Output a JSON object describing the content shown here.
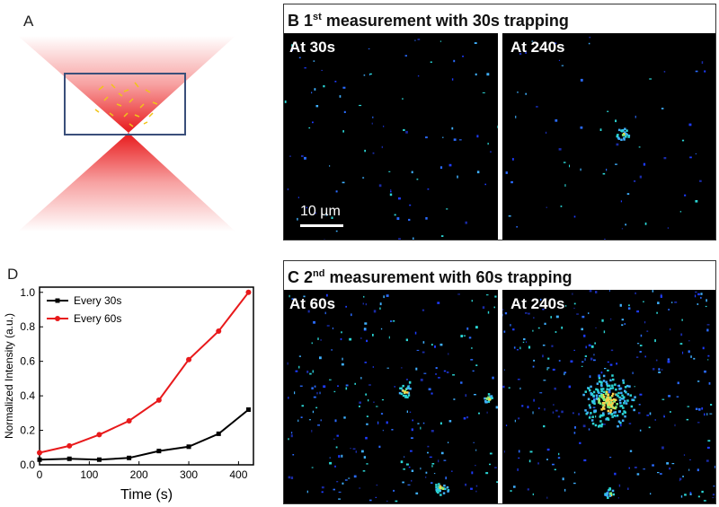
{
  "panel_a": {
    "letter": "A"
  },
  "panel_b": {
    "letter": "B",
    "title_prefix": "1",
    "title_sup": "st",
    "title_suffix": " measurement with 30s trapping",
    "left_label": "At 30s",
    "right_label": "At 240s",
    "scale_bar_label": "10 µm"
  },
  "panel_c": {
    "letter": "C",
    "title_prefix": "2",
    "title_sup": "nd",
    "title_suffix": " measurement with 60s trapping",
    "left_label": "At 60s",
    "right_label": "At 240s"
  },
  "panel_d": {
    "letter": "D"
  },
  "chart_data": {
    "type": "line",
    "xlabel": "Time (s)",
    "ylabel": "Normalized Intensity (a.u.)",
    "xlim": [
      0,
      430
    ],
    "ylim": [
      0,
      1.03
    ],
    "xticks": [
      0,
      100,
      200,
      300,
      400
    ],
    "yticks": [
      0.0,
      0.2,
      0.4,
      0.6,
      0.8,
      1.0
    ],
    "ytick_labels": [
      "0.0",
      "0.2",
      "0.4",
      "0.6",
      "0.8",
      "1.0"
    ],
    "legend_position": "top-left",
    "series": [
      {
        "name": "Every 30s",
        "color": "#000000",
        "marker": "square",
        "x": [
          0,
          60,
          120,
          180,
          240,
          300,
          360,
          420
        ],
        "y": [
          0.03,
          0.035,
          0.03,
          0.04,
          0.08,
          0.105,
          0.18,
          0.32
        ]
      },
      {
        "name": "Every 60s",
        "color": "#e8191b",
        "marker": "circle",
        "x": [
          0,
          60,
          120,
          180,
          240,
          300,
          360,
          420
        ],
        "y": [
          0.07,
          0.11,
          0.175,
          0.255,
          0.375,
          0.61,
          0.775,
          1.0
        ]
      }
    ]
  }
}
